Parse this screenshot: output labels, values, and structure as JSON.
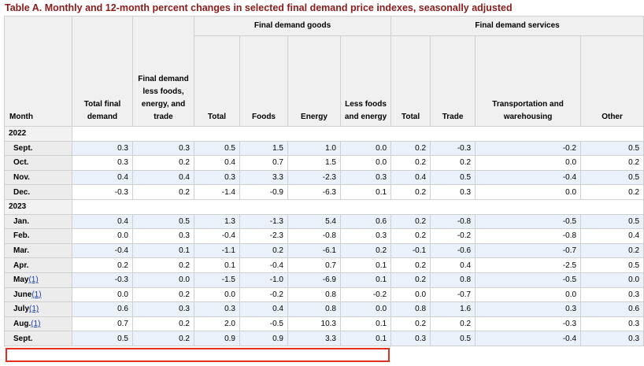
{
  "caption": "Table A. Monthly and 12-month percent changes in selected final demand price indexes, seasonally adjusted",
  "headers": {
    "month": "Month",
    "total_final_demand": "Total final demand",
    "fd_less": "Final demand less foods, energy, and trade",
    "group_goods": "Final demand goods",
    "group_services": "Final demand services",
    "goods_total": "Total",
    "goods_foods": "Foods",
    "goods_energy": "Energy",
    "goods_less": "Less foods and energy",
    "services_total": "Total",
    "services_trade": "Trade",
    "services_transport": "Transportation and warehousing",
    "services_other": "Other"
  },
  "groups": [
    {
      "year": "2022",
      "rows": [
        {
          "month": "Sept.",
          "fn": "",
          "v": [
            "0.3",
            "0.3",
            "0.5",
            "1.5",
            "1.0",
            "0.0",
            "0.2",
            "-0.3",
            "-0.2",
            "0.5"
          ]
        },
        {
          "month": "Oct.",
          "fn": "",
          "v": [
            "0.3",
            "0.2",
            "0.4",
            "0.7",
            "1.5",
            "0.0",
            "0.2",
            "0.2",
            "0.0",
            "0.2"
          ]
        },
        {
          "month": "Nov.",
          "fn": "",
          "v": [
            "0.4",
            "0.4",
            "0.3",
            "3.3",
            "-2.3",
            "0.3",
            "0.4",
            "0.5",
            "-0.4",
            "0.5"
          ]
        },
        {
          "month": "Dec.",
          "fn": "",
          "v": [
            "-0.3",
            "0.2",
            "-1.4",
            "-0.9",
            "-6.3",
            "0.1",
            "0.2",
            "0.3",
            "0.0",
            "0.2"
          ]
        }
      ]
    },
    {
      "year": "2023",
      "rows": [
        {
          "month": "Jan.",
          "fn": "",
          "v": [
            "0.4",
            "0.5",
            "1.3",
            "-1.3",
            "5.4",
            "0.6",
            "0.2",
            "-0.8",
            "-0.5",
            "0.5"
          ]
        },
        {
          "month": "Feb.",
          "fn": "",
          "v": [
            "0.0",
            "0.3",
            "-0.4",
            "-2.3",
            "-0.8",
            "0.3",
            "0.2",
            "-0.2",
            "-0.8",
            "0.4"
          ]
        },
        {
          "month": "Mar.",
          "fn": "",
          "v": [
            "-0.4",
            "0.1",
            "-1.1",
            "0.2",
            "-6.1",
            "0.2",
            "-0.1",
            "-0.6",
            "-0.7",
            "0.2"
          ]
        },
        {
          "month": "Apr.",
          "fn": "",
          "v": [
            "0.2",
            "0.2",
            "0.1",
            "-0.4",
            "0.7",
            "0.1",
            "0.2",
            "0.4",
            "-2.5",
            "0.5"
          ]
        },
        {
          "month": "May",
          "fn": "(1)",
          "v": [
            "-0.3",
            "0.0",
            "-1.5",
            "-1.0",
            "-6.9",
            "0.1",
            "0.2",
            "0.8",
            "-0.5",
            "0.0"
          ]
        },
        {
          "month": "June",
          "fn": "(1)",
          "v": [
            "0.0",
            "0.2",
            "0.0",
            "-0.2",
            "0.8",
            "-0.2",
            "0.0",
            "-0.7",
            "0.0",
            "0.3"
          ]
        },
        {
          "month": "July",
          "fn": "(1)",
          "v": [
            "0.6",
            "0.3",
            "0.3",
            "0.4",
            "0.8",
            "0.0",
            "0.8",
            "1.6",
            "0.3",
            "0.6"
          ]
        },
        {
          "month": "Aug.",
          "fn": "(1)",
          "v": [
            "0.7",
            "0.2",
            "2.0",
            "-0.5",
            "10.3",
            "0.1",
            "0.2",
            "0.2",
            "-0.3",
            "0.3"
          ]
        },
        {
          "month": "Sept.",
          "fn": "",
          "v": [
            "0.5",
            "0.2",
            "0.9",
            "0.9",
            "3.3",
            "0.1",
            "0.3",
            "0.5",
            "-0.4",
            "0.3"
          ]
        }
      ]
    }
  ],
  "colors": {
    "caption": "#8b1a1a",
    "highlight": "#e2301f",
    "stripe": "#eaf1fb"
  }
}
